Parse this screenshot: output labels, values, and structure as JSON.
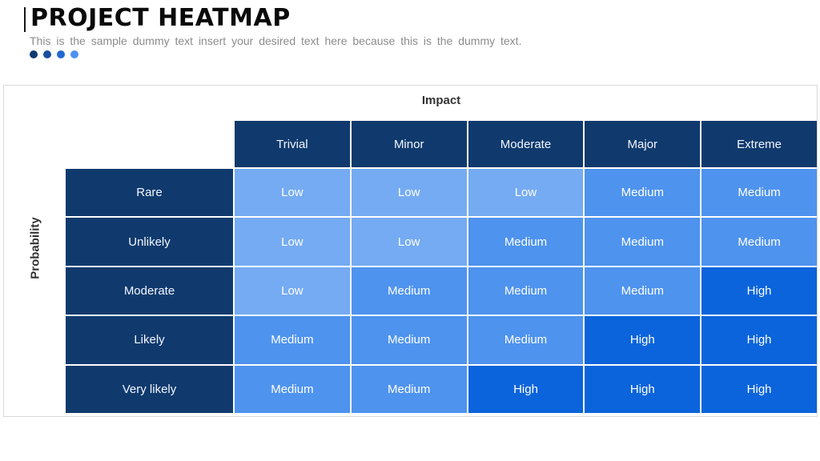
{
  "slide": {
    "title": "PROJECT HEATMAP",
    "subtitle": "This is the sample dummy text insert your desired text here because this is the dummy text.",
    "accent_dot_colors": [
      "#0F3A6E",
      "#15509B",
      "#2069CE",
      "#4C92EF"
    ]
  },
  "chart_data": {
    "type": "heatmap",
    "title": "PROJECT HEATMAP",
    "x_axis_label": "Impact",
    "y_axis_label": "Probability",
    "columns": [
      "Trivial",
      "Minor",
      "Moderate",
      "Major",
      "Extreme"
    ],
    "rows": [
      "Rare",
      "Unlikely",
      "Moderate",
      "Likely",
      "Very likely"
    ],
    "cells": [
      [
        "Low",
        "Low",
        "Low",
        "Medium",
        "Medium"
      ],
      [
        "Low",
        "Low",
        "Medium",
        "Medium",
        "Medium"
      ],
      [
        "Low",
        "Medium",
        "Medium",
        "Medium",
        "High"
      ],
      [
        "Medium",
        "Medium",
        "Medium",
        "High",
        "High"
      ],
      [
        "Medium",
        "Medium",
        "High",
        "High",
        "High"
      ]
    ],
    "level_colors": {
      "Low": "#75ABF2",
      "Medium": "#4E93EE",
      "High": "#0B64DB"
    },
    "header_color": "#103A6D",
    "legend_position": "none",
    "grid": true
  }
}
